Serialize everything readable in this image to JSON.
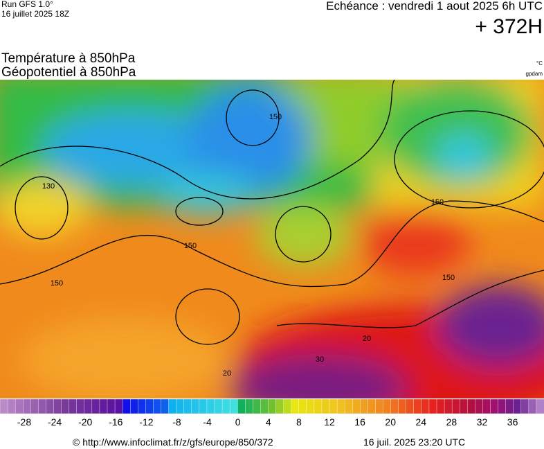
{
  "header": {
    "run": "Run GFS 1.0°",
    "run_date": "16 juillet 2025 18Z",
    "valid": "Echéance : vendredi 1 aout 2025 6h UTC",
    "lead": "+ 372H",
    "title1": "Température à 850hPa",
    "title2": "Géopotentiel à 850hPa",
    "unit1": "°C",
    "unit2": "gpdam"
  },
  "map": {
    "contour_labels": [
      "130",
      "150",
      "150",
      "150",
      "150",
      "150",
      "20",
      "30",
      "20"
    ]
  },
  "legend": {
    "ticks": [
      -28,
      -24,
      -20,
      -16,
      -12,
      -8,
      -4,
      0,
      4,
      8,
      12,
      16,
      20,
      24,
      28,
      32,
      36
    ]
  },
  "footer": {
    "url": "© http://www.infoclimat.fr/z/gfs/europe/850/372",
    "time": "16 juil. 2025 23:20 UTC"
  }
}
